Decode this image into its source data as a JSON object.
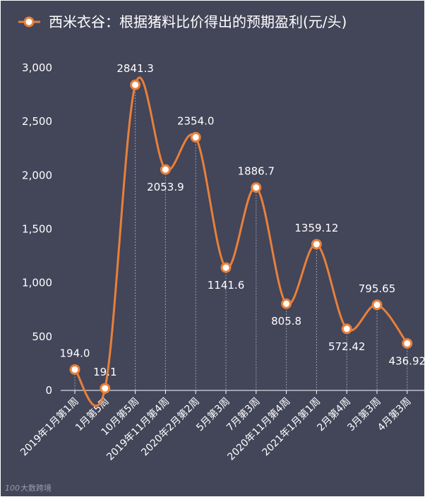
{
  "legend": {
    "series_name": "西米衣谷：根据猪料比价得出的预期盈利(元/头)"
  },
  "watermark": {
    "text": "大数跨境",
    "logo": "100"
  },
  "colors": {
    "background": "#434559",
    "line": "#E8803A",
    "text": "#FFFFFF",
    "gridline": "#9EA0AE",
    "axis": "#FFFFFF"
  },
  "chart_data": {
    "type": "line",
    "smooth": true,
    "categories": [
      "2019年1月第1周",
      "1月第5周",
      "10月第5周",
      "2019年11月第4周",
      "2020年2月第2周",
      "5月第3周",
      "7月第3周",
      "2020年11月第4周",
      "2021年1月第1周",
      "2月第4周",
      "3月第3周",
      "4月第3周"
    ],
    "series": [
      {
        "name": "西米衣谷：根据猪料比价得出的预期盈利(元/头)",
        "values": [
          194.0,
          19.1,
          2841.3,
          2053.9,
          2354.0,
          1141.6,
          1886.7,
          805.8,
          1359.12,
          572.42,
          795.65,
          436.92
        ],
        "labels": [
          "194.0",
          "19.1",
          "2841.3",
          "2053.9",
          "2354.0",
          "1141.6",
          "1886.7",
          "805.8",
          "1359.12",
          "572.42",
          "795.65",
          "436.92"
        ],
        "label_positions": [
          "above",
          "above",
          "above",
          "below",
          "above",
          "below",
          "above",
          "below",
          "above",
          "below",
          "above",
          "below"
        ]
      }
    ],
    "yticks": [
      0,
      500,
      1000,
      1500,
      2000,
      2500,
      3000
    ],
    "ytick_labels": [
      "0",
      "500",
      "1,000",
      "1,500",
      "2,000",
      "2,500",
      "3,000"
    ],
    "ylim": [
      0,
      3000
    ],
    "grid": "vertical dashed",
    "legend_position": "top-left"
  }
}
